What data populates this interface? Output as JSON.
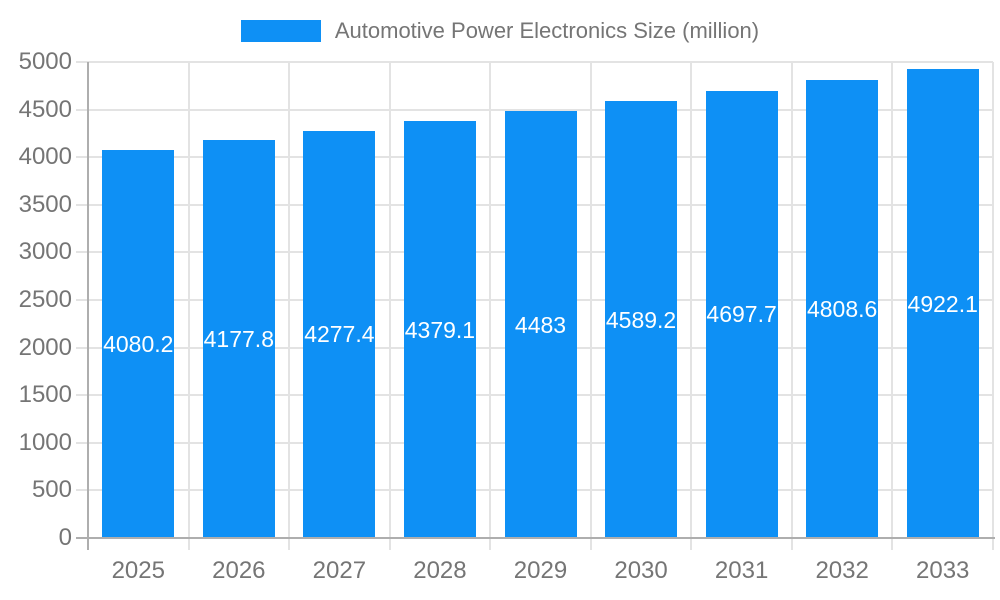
{
  "chart_data": {
    "type": "bar",
    "title": "Automotive Power Electronics Size (million)",
    "legend_position": "top",
    "categories": [
      "2025",
      "2026",
      "2027",
      "2028",
      "2029",
      "2030",
      "2031",
      "2032",
      "2033"
    ],
    "series": [
      {
        "name": "Automotive Power Electronics Size (million)",
        "values": [
          4080.2,
          4177.8,
          4277.4,
          4379.1,
          4483,
          4589.2,
          4697.7,
          4808.6,
          4922.1
        ]
      }
    ],
    "bar_labels": [
      "4080.2",
      "4177.8",
      "4277.4",
      "4379.1",
      "4483",
      "4589.2",
      "4697.7",
      "4808.6",
      "4922.1"
    ],
    "ylim": [
      0,
      5000
    ],
    "ytick_step": 500,
    "ytick_labels": [
      "0",
      "500",
      "1000",
      "1500",
      "2000",
      "2500",
      "3000",
      "3500",
      "4000",
      "4500",
      "5000"
    ],
    "grid": true
  },
  "colors": {
    "bar": "#0E90F5",
    "grid_line": "#E3E3E3",
    "axis_line": "#AEAEAE",
    "tick_text": "#757575",
    "bar_label_text": "#FFFFFF",
    "background": "#FFFFFF"
  }
}
